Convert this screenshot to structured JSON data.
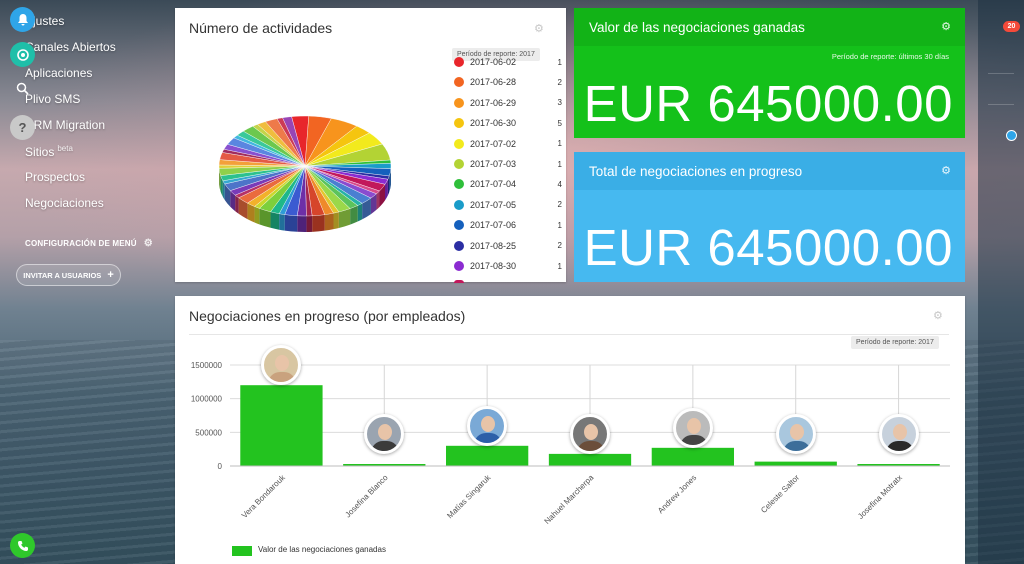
{
  "menu": {
    "items": [
      {
        "label": "Ajustes",
        "sup": ""
      },
      {
        "label": "Canales Abiertos",
        "sup": ""
      },
      {
        "label": "Aplicaciones",
        "sup": ""
      },
      {
        "label": "Plivo SMS",
        "sup": ""
      },
      {
        "label": "CRM Migration",
        "sup": ""
      },
      {
        "label": "Sitios",
        "sup": "beta"
      },
      {
        "label": "Prospectos",
        "sup": ""
      },
      {
        "label": "Negociaciones",
        "sup": ""
      }
    ],
    "config_label": "CONFIGURACIÓN DE MENÚ",
    "invite_label": "INVITAR A USUARIOS"
  },
  "activities_widget": {
    "title": "Número de actividades",
    "period_tag": "Período de reporte: 2017",
    "legend": [
      {
        "date": "2017-06-02",
        "count": "1",
        "color": "#e8262b"
      },
      {
        "date": "2017-06-28",
        "count": "2",
        "color": "#f26522"
      },
      {
        "date": "2017-06-29",
        "count": "3",
        "color": "#f7941d"
      },
      {
        "date": "2017-06-30",
        "count": "5",
        "color": "#f5c50f"
      },
      {
        "date": "2017-07-02",
        "count": "1",
        "color": "#f2ea1d"
      },
      {
        "date": "2017-07-03",
        "count": "1",
        "color": "#b3d334"
      },
      {
        "date": "2017-07-04",
        "count": "4",
        "color": "#2fbf3a"
      },
      {
        "date": "2017-07-05",
        "count": "2",
        "color": "#1a9cc9"
      },
      {
        "date": "2017-07-06",
        "count": "1",
        "color": "#1560bd"
      },
      {
        "date": "2017-08-25",
        "count": "2",
        "color": "#2b2ea3"
      },
      {
        "date": "2017-08-30",
        "count": "1",
        "color": "#8b2bd1"
      }
    ]
  },
  "won_deals_widget": {
    "title": "Valor de las negociaciones ganadas",
    "period": "Período de reporte: últimos 30 días",
    "value": "EUR 645000.00",
    "color": "#14c11a"
  },
  "in_progress_widget": {
    "title": "Total de negociaciones en progreso",
    "value": "EUR 645000.00",
    "color": "#46b9f0"
  },
  "by_employee_widget": {
    "title": "Negociaciones en progreso (por empleados)",
    "period_tag": "Período de reporte: 2017",
    "legend_label": "Valor de las negociaciones ganadas"
  },
  "chart_data": {
    "type": "bar",
    "categories": [
      "Vera Bondarouk",
      "Josefina Blanco",
      "Matías Singaruk",
      "Nahuel Marcherpa",
      "Andrew Jones",
      "Celeste Saltor",
      "Josefina Motratx"
    ],
    "series": [
      {
        "name": "Valor de las negociaciones ganadas",
        "values": [
          1200000,
          15000,
          300000,
          180000,
          270000,
          65000,
          20000
        ]
      }
    ],
    "yticks": [
      "0",
      "500000",
      "1000000",
      "1500000"
    ],
    "ylim": [
      0,
      1500000
    ],
    "bar_color": "#23c31f"
  },
  "rail": {
    "notification_count": "20"
  }
}
